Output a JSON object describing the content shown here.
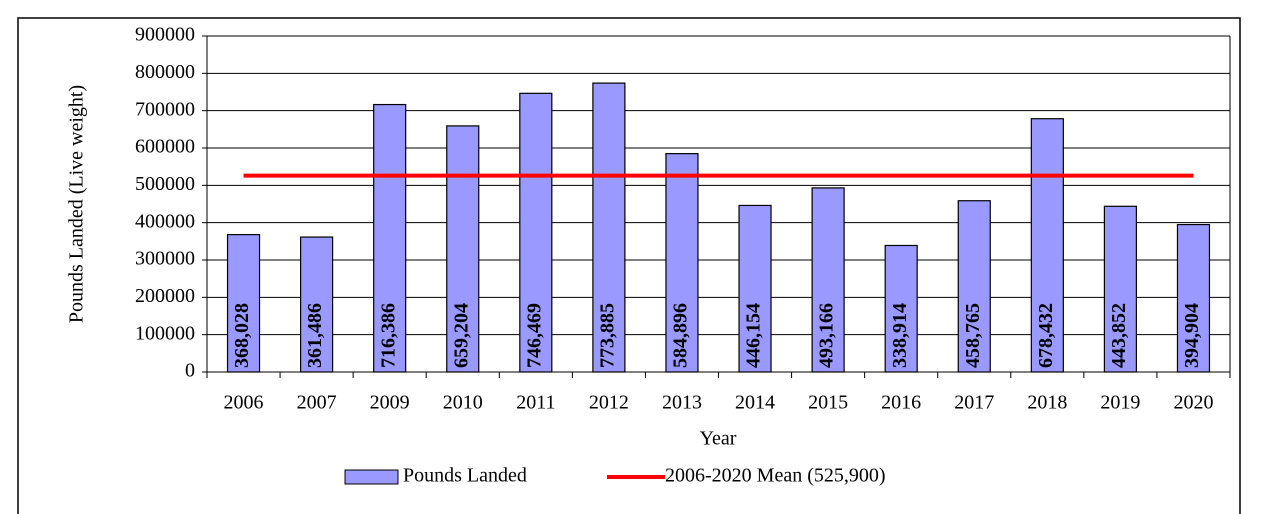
{
  "chart_data": {
    "type": "bar",
    "x_label": "Year",
    "y_label": "Pounds Landed (Live weight)",
    "categories": [
      "2006",
      "2007",
      "2009",
      "2010",
      "2011",
      "2012",
      "2013",
      "2014",
      "2015",
      "2016",
      "2017",
      "2018",
      "2019",
      "2020"
    ],
    "series": [
      {
        "name": "Pounds Landed",
        "type": "bar",
        "color": "#9999ff",
        "values": [
          368028,
          361486,
          716386,
          659204,
          746469,
          773885,
          584896,
          446154,
          493166,
          338914,
          458765,
          678432,
          443852,
          394904
        ],
        "value_labels": [
          "368,028",
          "361,486",
          "716,386",
          "659,204",
          "746,469",
          "773,885",
          "584,896",
          "446,154",
          "493,166",
          "338,914",
          "458,765",
          "678,432",
          "443,852",
          "394,904"
        ]
      },
      {
        "name": "2006-2020 Mean (525,900)",
        "type": "line",
        "color": "#ff0000",
        "values": [
          525900,
          525900,
          525900,
          525900,
          525900,
          525900,
          525900,
          525900,
          525900,
          525900,
          525900,
          525900,
          525900,
          525900
        ]
      }
    ],
    "ylim": [
      0,
      900000
    ],
    "yticks": [
      0,
      100000,
      200000,
      300000,
      400000,
      500000,
      600000,
      700000,
      800000,
      900000
    ],
    "grid": true
  }
}
